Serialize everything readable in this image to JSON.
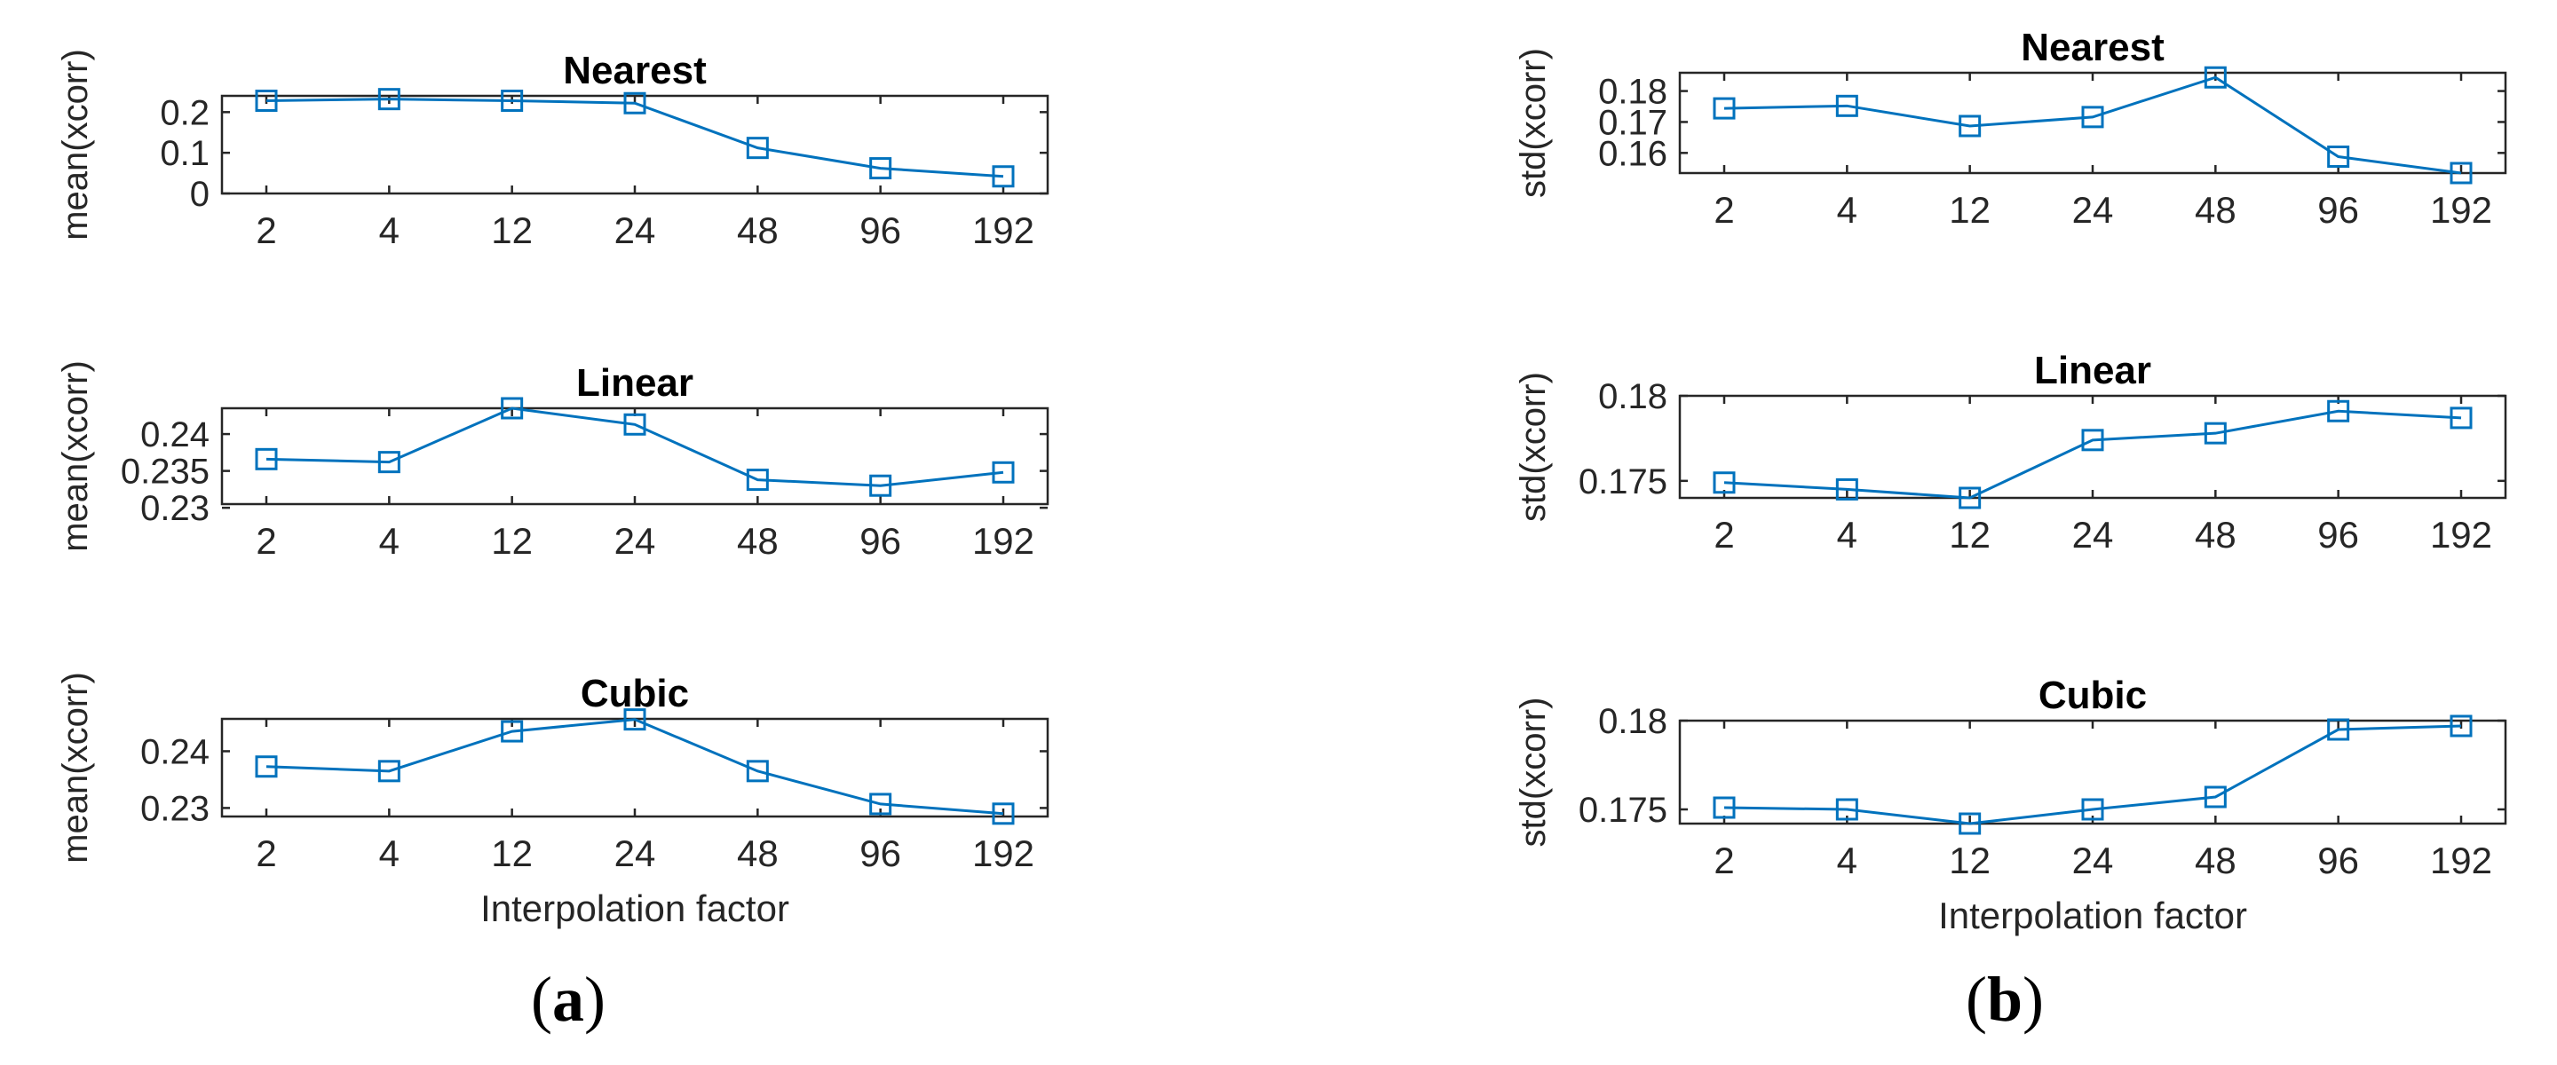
{
  "colors": {
    "series": "#0072BD",
    "axis": "#262626",
    "text": "#262626"
  },
  "panel_labels": {
    "a": {
      "open": "(",
      "letter": "a",
      "close": ")"
    },
    "b": {
      "open": "(",
      "letter": "b",
      "close": ")"
    }
  },
  "chart_data": [
    {
      "type": "line",
      "panel": "a",
      "row": 0,
      "title": "Nearest",
      "xlabel": "",
      "ylabel": "mean(xcorr)",
      "categories": [
        "2",
        "4",
        "12",
        "24",
        "48",
        "96",
        "192"
      ],
      "values": [
        0.228,
        0.232,
        0.228,
        0.222,
        0.112,
        0.062,
        0.042
      ],
      "ylim": [
        0,
        0.24
      ],
      "yticks": [
        0,
        0.1,
        0.2
      ],
      "ytick_labels": [
        "0",
        "0.1",
        "0.2"
      ],
      "marker": "square",
      "grid": false
    },
    {
      "type": "line",
      "panel": "a",
      "row": 1,
      "title": "Linear",
      "xlabel": "",
      "ylabel": "mean(xcorr)",
      "categories": [
        "2",
        "4",
        "12",
        "24",
        "48",
        "96",
        "192"
      ],
      "values": [
        0.2366,
        0.2362,
        0.2435,
        0.2413,
        0.2338,
        0.233,
        0.2348
      ],
      "ylim": [
        0.2305,
        0.2435
      ],
      "yticks": [
        0.23,
        0.235,
        0.24
      ],
      "ytick_labels": [
        "0.23",
        "0.235",
        "0.24"
      ],
      "marker": "square",
      "grid": false
    },
    {
      "type": "line",
      "panel": "a",
      "row": 2,
      "title": "Cubic",
      "xlabel": "Interpolation factor",
      "ylabel": "mean(xcorr)",
      "categories": [
        "2",
        "4",
        "12",
        "24",
        "48",
        "96",
        "192"
      ],
      "values": [
        0.2373,
        0.2365,
        0.2435,
        0.2456,
        0.2365,
        0.2307,
        0.229
      ],
      "ylim": [
        0.2285,
        0.2457
      ],
      "yticks": [
        0.23,
        0.24
      ],
      "ytick_labels": [
        "0.23",
        "0.24"
      ],
      "marker": "square",
      "grid": false
    },
    {
      "type": "line",
      "panel": "b",
      "row": 0,
      "title": "Nearest",
      "xlabel": "",
      "ylabel": "std(xcorr)",
      "categories": [
        "2",
        "4",
        "12",
        "24",
        "48",
        "96",
        "192"
      ],
      "values": [
        0.1744,
        0.1752,
        0.1687,
        0.1716,
        0.1844,
        0.1588,
        0.1535
      ],
      "ylim": [
        0.1535,
        0.1859
      ],
      "yticks": [
        0.16,
        0.17,
        0.18
      ],
      "ytick_labels": [
        "0.16",
        "0.17",
        "0.18"
      ],
      "marker": "square",
      "grid": false
    },
    {
      "type": "line",
      "panel": "b",
      "row": 1,
      "title": "Linear",
      "xlabel": "",
      "ylabel": "std(xcorr)",
      "categories": [
        "2",
        "4",
        "12",
        "24",
        "48",
        "96",
        "192"
      ],
      "values": [
        0.1749,
        0.1745,
        0.174,
        0.1774,
        0.1778,
        0.1791,
        0.1787
      ],
      "ylim": [
        0.174,
        0.18
      ],
      "yticks": [
        0.175,
        0.18
      ],
      "ytick_labels": [
        "0.175",
        "0.18"
      ],
      "marker": "square",
      "grid": false
    },
    {
      "type": "line",
      "panel": "b",
      "row": 2,
      "title": "Cubic",
      "xlabel": "Interpolation factor",
      "ylabel": "std(xcorr)",
      "categories": [
        "2",
        "4",
        "12",
        "24",
        "48",
        "96",
        "192"
      ],
      "values": [
        0.1751,
        0.175,
        0.1742,
        0.175,
        0.1757,
        0.1795,
        0.1797
      ],
      "ylim": [
        0.1742,
        0.18
      ],
      "yticks": [
        0.175,
        0.18
      ],
      "ytick_labels": [
        "0.175",
        "0.18"
      ],
      "marker": "square",
      "grid": false
    }
  ]
}
